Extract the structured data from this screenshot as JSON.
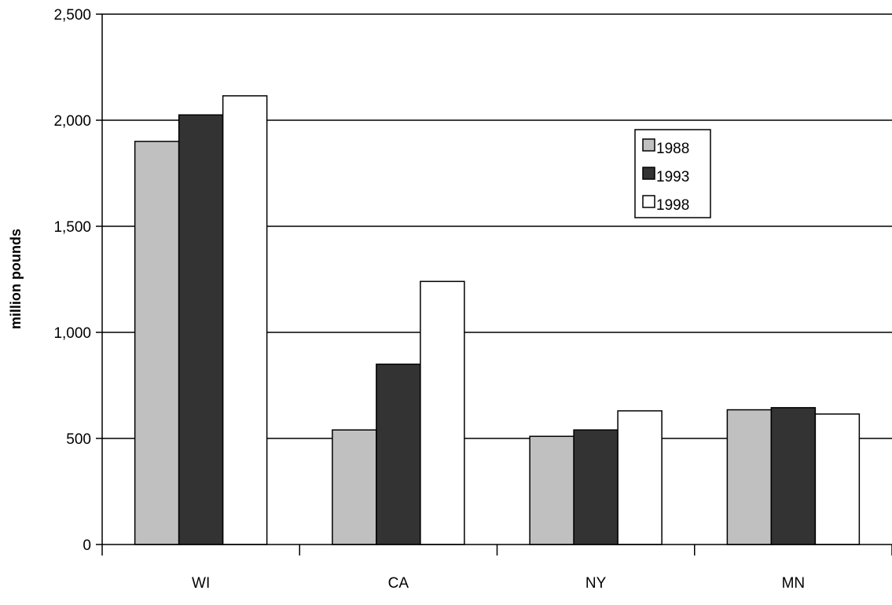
{
  "chart_data": {
    "type": "bar",
    "title": "",
    "xlabel": "",
    "ylabel": "million pounds",
    "categories": [
      "WI",
      "CA",
      "NY",
      "MN"
    ],
    "series": [
      {
        "name": "1988",
        "values": [
          1900,
          540,
          510,
          635
        ],
        "color": "#c0c0c0"
      },
      {
        "name": "1993",
        "values": [
          2025,
          850,
          540,
          645
        ],
        "color": "#333333"
      },
      {
        "name": "1998",
        "values": [
          2115,
          1240,
          630,
          615
        ],
        "color": "#ffffff"
      }
    ],
    "ylim": [
      0,
      2500
    ],
    "yticks": [
      0,
      500,
      1000,
      1500,
      2000,
      2500
    ],
    "ytick_labels": [
      "0",
      "500",
      "1,000",
      "1,500",
      "2,000",
      "2,500"
    ],
    "grid": true,
    "legend_position": "upper-right-inside"
  }
}
